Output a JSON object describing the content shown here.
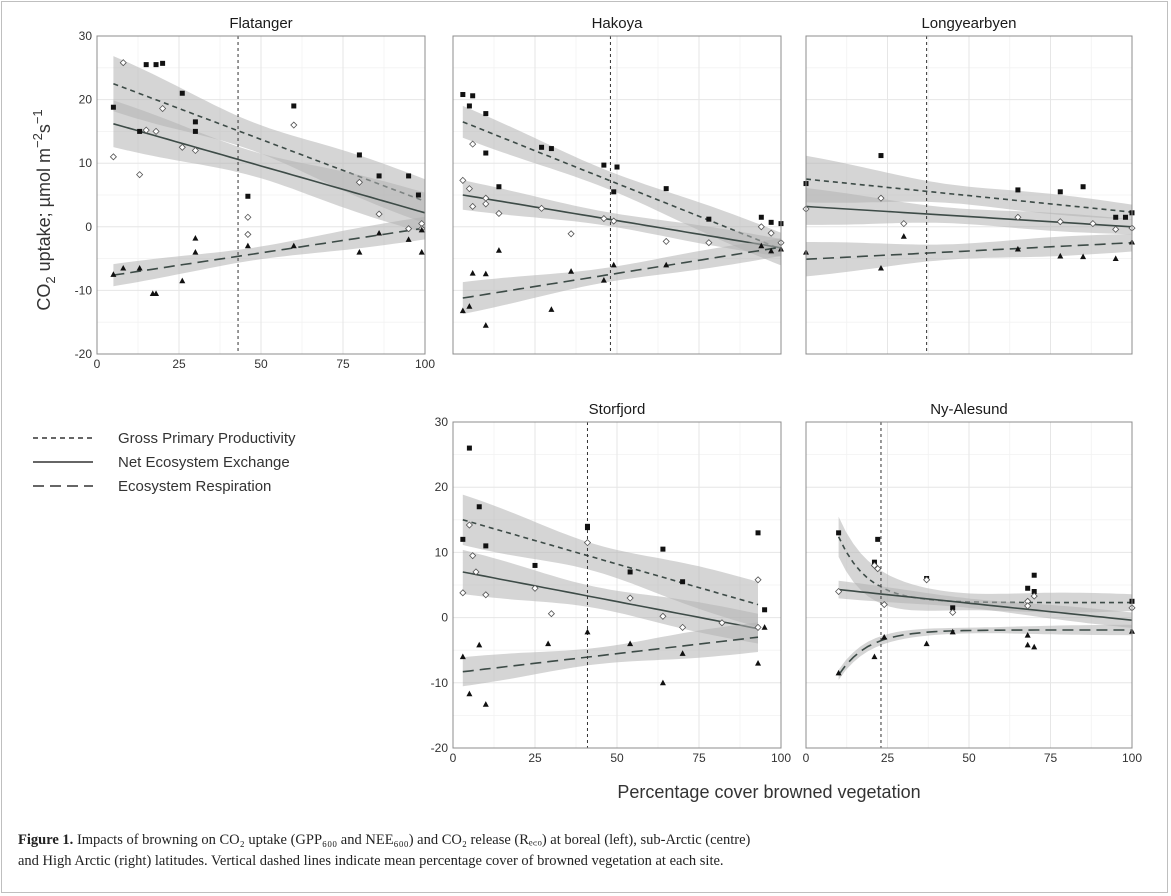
{
  "figure": {
    "y_axis_title_prefix": "CO",
    "y_axis_title_sub": "2",
    "y_axis_title_rest": " uptake; µmol m",
    "y_axis_title_exp1": "−2",
    "y_axis_title_mid": "s",
    "y_axis_title_exp2": "−1",
    "x_axis_title": "Percentage cover browned vegetation",
    "x_ticks": [
      "0",
      "25",
      "50",
      "75",
      "100"
    ],
    "y_ticks": [
      "-20",
      "-10",
      "0",
      "10",
      "20",
      "30"
    ],
    "legend": [
      {
        "label": "Gross Primary Productivity",
        "style": "short-dash"
      },
      {
        "label": "Net Ecosystem Exchange",
        "style": "solid"
      },
      {
        "label": "Ecosystem Respiration",
        "style": "long-dash"
      }
    ],
    "colors": {
      "fit": "#3d4b47",
      "band": "#b3b3b3",
      "points": "#111111",
      "panel_border": "#8c8c8c"
    }
  },
  "caption": {
    "label": "Figure 1.",
    "line1": " Impacts of browning on CO₂ uptake (GPP₆₀₀ and NEE₆₀₀) and CO₂ release (Rₑ꜀ₒ) at boreal (left), sub-Arctic (centre)",
    "line2": "and High Arctic (right) latitudes. Vertical dashed lines indicate mean percentage cover of browned vegetation at each site."
  },
  "chart_data": [
    {
      "type": "scatter",
      "title": "Flatanger",
      "xlim": [
        0,
        100
      ],
      "ylim": [
        -20,
        30
      ],
      "mean_cover": 43,
      "series": [
        {
          "name": "Gross Primary Productivity",
          "fit": "linear",
          "x": [
            5,
            100
          ],
          "y": [
            22.5,
            4
          ],
          "band": [
            4.5,
            3.5
          ]
        },
        {
          "name": "Net Ecosystem Exchange",
          "fit": "linear",
          "x": [
            5,
            100
          ],
          "y": [
            16.2,
            2.2
          ],
          "band": [
            3.8,
            3.2
          ]
        },
        {
          "name": "Ecosystem Respiration",
          "fit": "linear",
          "x": [
            5,
            100
          ],
          "y": [
            -7.6,
            -0.2
          ],
          "band": [
            1.8,
            1.8
          ]
        }
      ],
      "points": {
        "gpp": [
          [
            5,
            18.8
          ],
          [
            13,
            15
          ],
          [
            15,
            25.5
          ],
          [
            18,
            25.5
          ],
          [
            20,
            25.7
          ],
          [
            26,
            21
          ],
          [
            30,
            16.5
          ],
          [
            30,
            15
          ],
          [
            46,
            4.8
          ],
          [
            60,
            19
          ],
          [
            80,
            11.3
          ],
          [
            86,
            8
          ],
          [
            95,
            8
          ],
          [
            98,
            5
          ]
        ],
        "nee": [
          [
            5,
            11
          ],
          [
            8,
            25.8
          ],
          [
            13,
            8.2
          ],
          [
            15,
            15.2
          ],
          [
            18,
            15
          ],
          [
            20,
            18.6
          ],
          [
            26,
            12.5
          ],
          [
            30,
            12
          ],
          [
            46,
            1.5
          ],
          [
            46,
            -1.2
          ],
          [
            60,
            16
          ],
          [
            80,
            7
          ],
          [
            86,
            2
          ],
          [
            95,
            -0.3
          ],
          [
            99,
            0.5
          ],
          [
            99,
            -0.3
          ]
        ],
        "reco": [
          [
            5,
            -7.5
          ],
          [
            8,
            -6.5
          ],
          [
            13,
            -6.5
          ],
          [
            17,
            -10.5
          ],
          [
            18,
            -10.5
          ],
          [
            26,
            -8.5
          ],
          [
            30,
            -1.8
          ],
          [
            30,
            -4
          ],
          [
            46,
            -3
          ],
          [
            60,
            -3
          ],
          [
            80,
            -4
          ],
          [
            86,
            -1
          ],
          [
            95,
            -2
          ],
          [
            99,
            -0.5
          ],
          [
            99,
            -4
          ]
        ]
      }
    },
    {
      "type": "scatter",
      "title": "Hakoya",
      "xlim": [
        0,
        100
      ],
      "ylim": [
        -20,
        30
      ],
      "mean_cover": 48,
      "series": [
        {
          "name": "Gross Primary Productivity",
          "fit": "linear",
          "x": [
            3,
            100
          ],
          "y": [
            16.5,
            -3.5
          ],
          "band": [
            2.6,
            2.6
          ]
        },
        {
          "name": "Net Ecosystem Exchange",
          "fit": "linear",
          "x": [
            3,
            100
          ],
          "y": [
            5,
            -3.3
          ],
          "band": [
            2.4,
            1.4
          ]
        },
        {
          "name": "Ecosystem Respiration",
          "fit": "linear",
          "x": [
            3,
            100
          ],
          "y": [
            -11.2,
            -3.2
          ],
          "band": [
            2.6,
            1.4
          ]
        }
      ],
      "points": {
        "gpp": [
          [
            3,
            20.8
          ],
          [
            5,
            19
          ],
          [
            6,
            20.6
          ],
          [
            10,
            17.8
          ],
          [
            10,
            11.6
          ],
          [
            14,
            6.3
          ],
          [
            27,
            12.5
          ],
          [
            30,
            12.3
          ],
          [
            46,
            9.7
          ],
          [
            49,
            5.5
          ],
          [
            50,
            9.4
          ],
          [
            65,
            6
          ],
          [
            78,
            1.2
          ],
          [
            94,
            1.5
          ],
          [
            97,
            0.7
          ],
          [
            100,
            0.5
          ]
        ],
        "nee": [
          [
            3,
            7.3
          ],
          [
            5,
            6
          ],
          [
            6,
            13
          ],
          [
            6,
            3.2
          ],
          [
            10,
            4.5
          ],
          [
            10,
            3.6
          ],
          [
            14,
            2.1
          ],
          [
            27,
            2.9
          ],
          [
            36,
            -1.1
          ],
          [
            46,
            1.3
          ],
          [
            49,
            0.9
          ],
          [
            65,
            -2.3
          ],
          [
            78,
            -2.5
          ],
          [
            94,
            0
          ],
          [
            97,
            -1
          ],
          [
            100,
            -2.5
          ]
        ],
        "reco": [
          [
            3,
            -13.2
          ],
          [
            5,
            -12.5
          ],
          [
            6,
            -7.3
          ],
          [
            10,
            -7.4
          ],
          [
            10,
            -15.5
          ],
          [
            14,
            -3.7
          ],
          [
            30,
            -13
          ],
          [
            36,
            -7
          ],
          [
            46,
            -8.4
          ],
          [
            49,
            -6
          ],
          [
            65,
            -6
          ],
          [
            94,
            -3
          ],
          [
            97,
            -3.8
          ],
          [
            100,
            -3.5
          ]
        ]
      }
    },
    {
      "type": "scatter",
      "title": "Longyearbyen",
      "xlim": [
        0,
        100
      ],
      "ylim": [
        -20,
        30
      ],
      "mean_cover": 37,
      "series": [
        {
          "name": "Gross Primary Productivity",
          "fit": "linear",
          "x": [
            0,
            100
          ],
          "y": [
            7.5,
            2.3
          ],
          "band": [
            3.8,
            1.2
          ]
        },
        {
          "name": "Net Ecosystem Exchange",
          "fit": "linear",
          "x": [
            0,
            100
          ],
          "y": [
            3.2,
            0
          ],
          "band": [
            3,
            1.2
          ]
        },
        {
          "name": "Ecosystem Respiration",
          "fit": "linear",
          "x": [
            0,
            100
          ],
          "y": [
            -5.1,
            -2.5
          ],
          "band": [
            2.8,
            1.4
          ]
        }
      ],
      "points": {
        "gpp": [
          [
            0,
            6.8
          ],
          [
            23,
            11.2
          ],
          [
            65,
            5.8
          ],
          [
            78,
            5.5
          ],
          [
            85,
            6.3
          ],
          [
            95,
            1.5
          ],
          [
            98,
            1.5
          ],
          [
            100,
            2.2
          ]
        ],
        "nee": [
          [
            0,
            2.8
          ],
          [
            23,
            4.5
          ],
          [
            30,
            0.5
          ],
          [
            65,
            1.5
          ],
          [
            78,
            0.8
          ],
          [
            88,
            0.5
          ],
          [
            95,
            -0.4
          ],
          [
            100,
            -0.2
          ]
        ],
        "reco": [
          [
            0,
            -4
          ],
          [
            23,
            -6.5
          ],
          [
            30,
            -1.5
          ],
          [
            65,
            -3.5
          ],
          [
            78,
            -4.6
          ],
          [
            85,
            -4.7
          ],
          [
            95,
            -5
          ],
          [
            100,
            -2.4
          ]
        ]
      }
    },
    {
      "type": "scatter",
      "title": "Storfjord",
      "xlim": [
        0,
        100
      ],
      "ylim": [
        -20,
        30
      ],
      "mean_cover": 41,
      "series": [
        {
          "name": "Gross Primary Productivity",
          "fit": "linear",
          "x": [
            3,
            93
          ],
          "y": [
            15,
            2
          ],
          "band": [
            4,
            3.5
          ]
        },
        {
          "name": "Net Ecosystem Exchange",
          "fit": "linear",
          "x": [
            3,
            93
          ],
          "y": [
            7,
            -1.7
          ],
          "band": [
            3.5,
            2.3
          ]
        },
        {
          "name": "Ecosystem Respiration",
          "fit": "linear",
          "x": [
            3,
            93
          ],
          "y": [
            -8.3,
            -3
          ],
          "band": [
            2.3,
            2.3
          ]
        }
      ],
      "points": {
        "gpp": [
          [
            3,
            12
          ],
          [
            5,
            26
          ],
          [
            8,
            17
          ],
          [
            10,
            11
          ],
          [
            25,
            8
          ],
          [
            41,
            14
          ],
          [
            41,
            13.8
          ],
          [
            54,
            7
          ],
          [
            64,
            10.5
          ],
          [
            70,
            5.5
          ],
          [
            93,
            13
          ],
          [
            95,
            1.2
          ]
        ],
        "nee": [
          [
            3,
            3.8
          ],
          [
            5,
            14.2
          ],
          [
            6,
            9.5
          ],
          [
            7,
            7
          ],
          [
            10,
            3.5
          ],
          [
            25,
            4.5
          ],
          [
            30,
            0.6
          ],
          [
            41,
            11.5
          ],
          [
            54,
            3
          ],
          [
            64,
            0.2
          ],
          [
            70,
            -1.5
          ],
          [
            82,
            -0.8
          ],
          [
            93,
            5.8
          ],
          [
            93,
            -1.5
          ]
        ],
        "reco": [
          [
            3,
            -6
          ],
          [
            5,
            -11.7
          ],
          [
            8,
            -4.2
          ],
          [
            10,
            -13.3
          ],
          [
            29,
            -4
          ],
          [
            41,
            -2.2
          ],
          [
            54,
            -4
          ],
          [
            64,
            -10
          ],
          [
            70,
            -5.5
          ],
          [
            93,
            -7
          ],
          [
            95,
            -1.5
          ]
        ]
      }
    },
    {
      "type": "scatter",
      "title": "Ny-Alesund",
      "xlim": [
        0,
        100
      ],
      "ylim": [
        -20,
        30
      ],
      "mean_cover": 23,
      "series": [
        {
          "name": "Gross Primary Productivity",
          "fit": "exponential",
          "x": [
            10,
            100
          ],
          "y": [
            12.4,
            2.3
          ],
          "band": [
            3.2,
            1.3
          ]
        },
        {
          "name": "Net Ecosystem Exchange",
          "fit": "linear",
          "x": [
            10,
            100
          ],
          "y": [
            4.3,
            -0.4
          ],
          "band": [
            1.4,
            1.2
          ]
        },
        {
          "name": "Ecosystem Respiration",
          "fit": "exponential",
          "x": [
            10,
            100
          ],
          "y": [
            -8.8,
            -1.9
          ],
          "band": [
            0.8,
            0.8
          ]
        }
      ],
      "points": {
        "gpp": [
          [
            10,
            13
          ],
          [
            21,
            8.5
          ],
          [
            22,
            12
          ],
          [
            37,
            6
          ],
          [
            45,
            1.5
          ],
          [
            68,
            4.5
          ],
          [
            70,
            6.5
          ],
          [
            70,
            4
          ],
          [
            100,
            2.5
          ]
        ],
        "nee": [
          [
            10,
            4
          ],
          [
            21,
            8
          ],
          [
            22,
            7.5
          ],
          [
            24,
            2
          ],
          [
            37,
            5.8
          ],
          [
            45,
            0.8
          ],
          [
            68,
            2.5
          ],
          [
            68,
            1.8
          ],
          [
            70,
            3.3
          ],
          [
            100,
            1.5
          ]
        ],
        "reco": [
          [
            10,
            -8.5
          ],
          [
            21,
            -6
          ],
          [
            24,
            -3
          ],
          [
            37,
            -4
          ],
          [
            45,
            -2.2
          ],
          [
            68,
            -4.2
          ],
          [
            68,
            -2.7
          ],
          [
            70,
            -4.5
          ],
          [
            100,
            -2.1
          ]
        ]
      }
    }
  ]
}
